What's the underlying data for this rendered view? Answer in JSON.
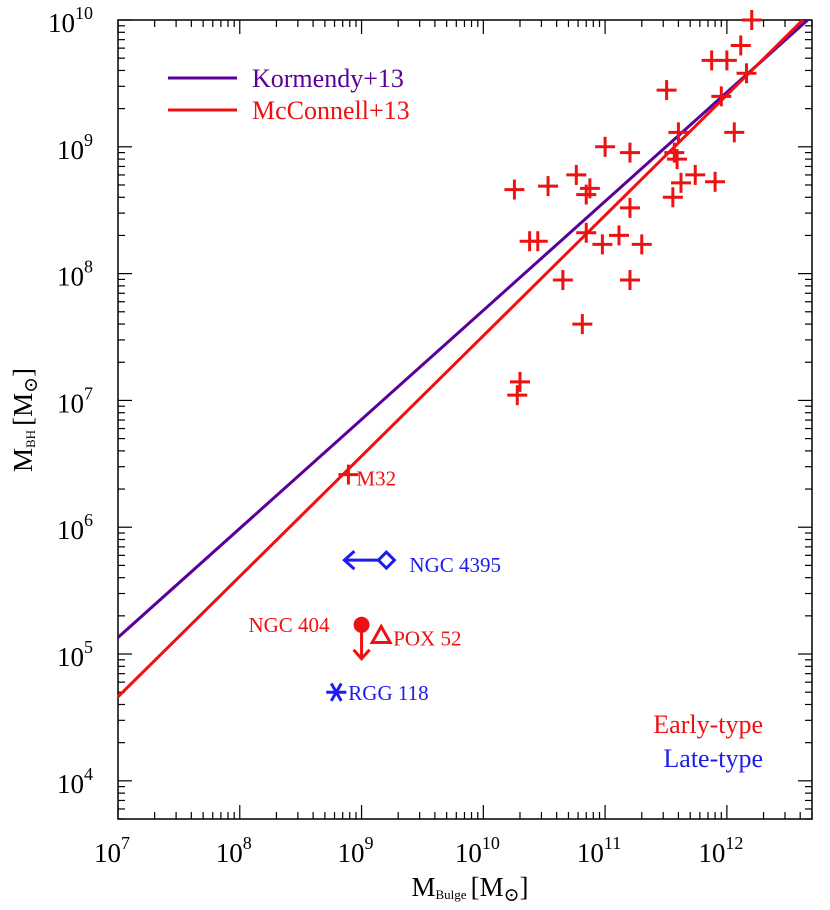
{
  "chart_data": {
    "type": "scatter",
    "xlabel": {
      "base": "M",
      "sub": "Bulge",
      "unit": "[M",
      "sun": "⊙",
      "close": "]"
    },
    "ylabel": {
      "base": "M",
      "sub": "BH",
      "unit": "[M",
      "sun": "⊙",
      "close": "]"
    },
    "x_scale": "log",
    "y_scale": "log",
    "xlim": [
      10000000,
      5000000000000
    ],
    "ylim": [
      5000,
      10000000000
    ],
    "x_ticks": [
      {
        "value": 10000000,
        "base": "10",
        "exp": "7"
      },
      {
        "value": 100000000,
        "base": "10",
        "exp": "8"
      },
      {
        "value": 1000000000,
        "base": "10",
        "exp": "9"
      },
      {
        "value": 10000000000,
        "base": "10",
        "exp": "10"
      },
      {
        "value": 100000000000,
        "base": "10",
        "exp": "11"
      },
      {
        "value": 1000000000000,
        "base": "10",
        "exp": "12"
      }
    ],
    "y_ticks": [
      {
        "value": 10000,
        "base": "10",
        "exp": "4"
      },
      {
        "value": 100000,
        "base": "10",
        "exp": "5"
      },
      {
        "value": 1000000,
        "base": "10",
        "exp": "6"
      },
      {
        "value": 10000000,
        "base": "10",
        "exp": "7"
      },
      {
        "value": 100000000,
        "base": "10",
        "exp": "8"
      },
      {
        "value": 1000000000,
        "base": "10",
        "exp": "9"
      },
      {
        "value": 10000000000,
        "base": "10",
        "exp": "10"
      }
    ],
    "lines": [
      {
        "name": "Kormendy+13",
        "color": "#5a0099",
        "points": [
          [
            10000000,
            135000
          ],
          [
            4600000000000,
            10000000000
          ]
        ]
      },
      {
        "name": "McConnell+13",
        "color": "#ee1111",
        "points": [
          [
            10000000,
            46000
          ],
          [
            4200000000000,
            10000000000
          ]
        ]
      }
    ],
    "legend_placement": "top-left",
    "series": [
      {
        "name": "Early-type",
        "color": "#ee1111",
        "marker": "plus",
        "points": [
          [
            18000000000,
            460000000
          ],
          [
            34000000000,
            490000000
          ],
          [
            58000000000,
            600000000
          ],
          [
            70000000000,
            420000000
          ],
          [
            75000000000,
            470000000
          ],
          [
            100000000000,
            1000000000
          ],
          [
            160000000000,
            900000000
          ],
          [
            320000000000,
            2800000000
          ],
          [
            370000000000,
            900000000
          ],
          [
            390000000000,
            800000000
          ],
          [
            400000000000,
            1300000000
          ],
          [
            360000000000,
            400000000
          ],
          [
            420000000000,
            520000000
          ],
          [
            550000000000,
            600000000
          ],
          [
            800000000000,
            530000000
          ],
          [
            750000000000,
            4800000000
          ],
          [
            1000000000000,
            4800000000
          ],
          [
            1300000000000,
            6300000000
          ],
          [
            1600000000000,
            10000000000
          ],
          [
            1450000000000,
            3800000000
          ],
          [
            900000000000,
            2500000000
          ],
          [
            1150000000000,
            1300000000
          ],
          [
            24000000000,
            180000000
          ],
          [
            28000000000,
            180000000
          ],
          [
            70000000000,
            210000000
          ],
          [
            95000000000,
            170000000
          ],
          [
            130000000000,
            200000000
          ],
          [
            160000000000,
            330000000
          ],
          [
            200000000000,
            170000000
          ],
          [
            45000000000,
            89000000
          ],
          [
            160000000000,
            89000000
          ],
          [
            65000000000,
            40000000
          ],
          [
            20000000000,
            14000000
          ],
          [
            19000000000,
            11000000
          ],
          [
            780000000,
            2600000
          ]
        ]
      },
      {
        "name": "NGC 4395",
        "color": "#1c1cee",
        "marker": "diamond-arrow-left",
        "points": [
          [
            1600000000,
            550000
          ]
        ]
      },
      {
        "name": "NGC 404",
        "color": "#ee1111",
        "marker": "dot-arrow-down",
        "points": [
          [
            1000000000,
            170000
          ]
        ]
      },
      {
        "name": "POX 52",
        "color": "#ee1111",
        "marker": "triangle",
        "points": [
          [
            1450000000,
            140000
          ]
        ]
      },
      {
        "name": "RGG 118",
        "color": "#1c1cee",
        "marker": "asterisk",
        "points": [
          [
            620000000,
            50000
          ]
        ]
      }
    ],
    "annotations": [
      {
        "text": "M32",
        "color": "#ee1111",
        "x": 780000000,
        "y": 2600000
      },
      {
        "text": "NGC 4395",
        "color": "#1c1cee",
        "x": 1600000000,
        "y": 550000
      },
      {
        "text": "NGC 404",
        "color": "#ee1111",
        "x": 1000000000,
        "y": 170000
      },
      {
        "text": "POX 52",
        "color": "#ee1111",
        "x": 1450000000,
        "y": 140000
      },
      {
        "text": "RGG 118",
        "color": "#1c1cee",
        "x": 620000000,
        "y": 50000
      }
    ],
    "type_labels": [
      {
        "text": "Early-type",
        "color": "#ee1111"
      },
      {
        "text": "Late-type",
        "color": "#1c1cee"
      }
    ]
  }
}
